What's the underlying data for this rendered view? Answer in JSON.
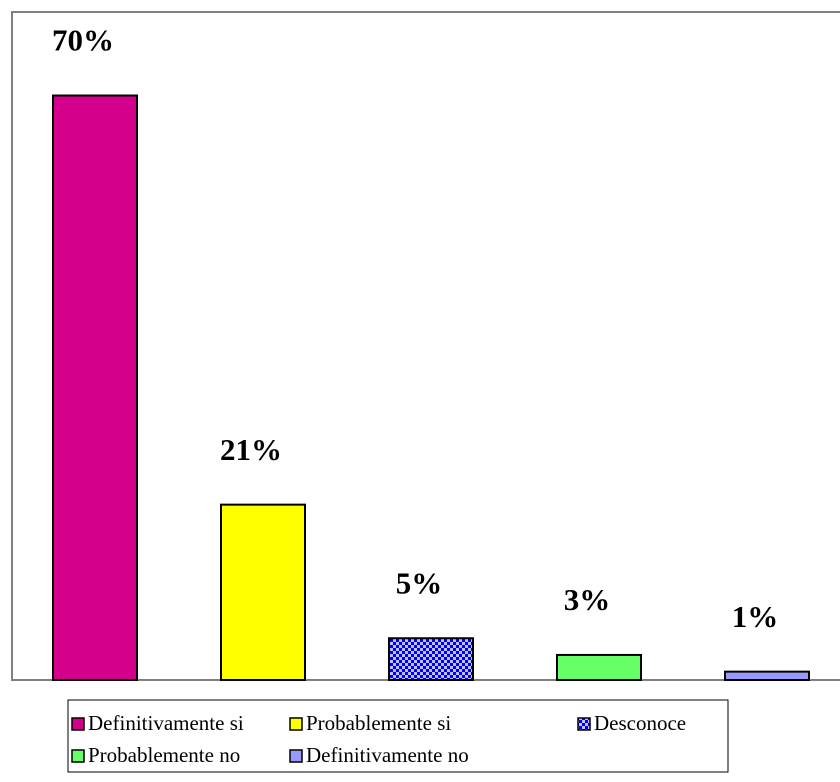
{
  "chart_data": {
    "type": "bar",
    "ylim": [
      0,
      80
    ],
    "legend": "bottom",
    "series": [
      {
        "name": "Definitivamente si",
        "color": "#d4008c",
        "values": [
          70
        ],
        "value_labels": [
          "70%"
        ]
      },
      {
        "name": "Probablemente si",
        "color": "#ffff00",
        "values": [
          21
        ],
        "value_labels": [
          "21%"
        ]
      },
      {
        "name": "Desconoce",
        "color": "#0000ff",
        "pattern": "checker",
        "values": [
          5
        ],
        "value_labels": [
          "5%"
        ]
      },
      {
        "name": "Probablemente no",
        "color": "#66ff66",
        "values": [
          3
        ],
        "value_labels": [
          "3%"
        ]
      },
      {
        "name": "Definitivamente no",
        "color": "#9999ff",
        "values": [
          1
        ],
        "value_labels": [
          "1%"
        ]
      }
    ]
  }
}
